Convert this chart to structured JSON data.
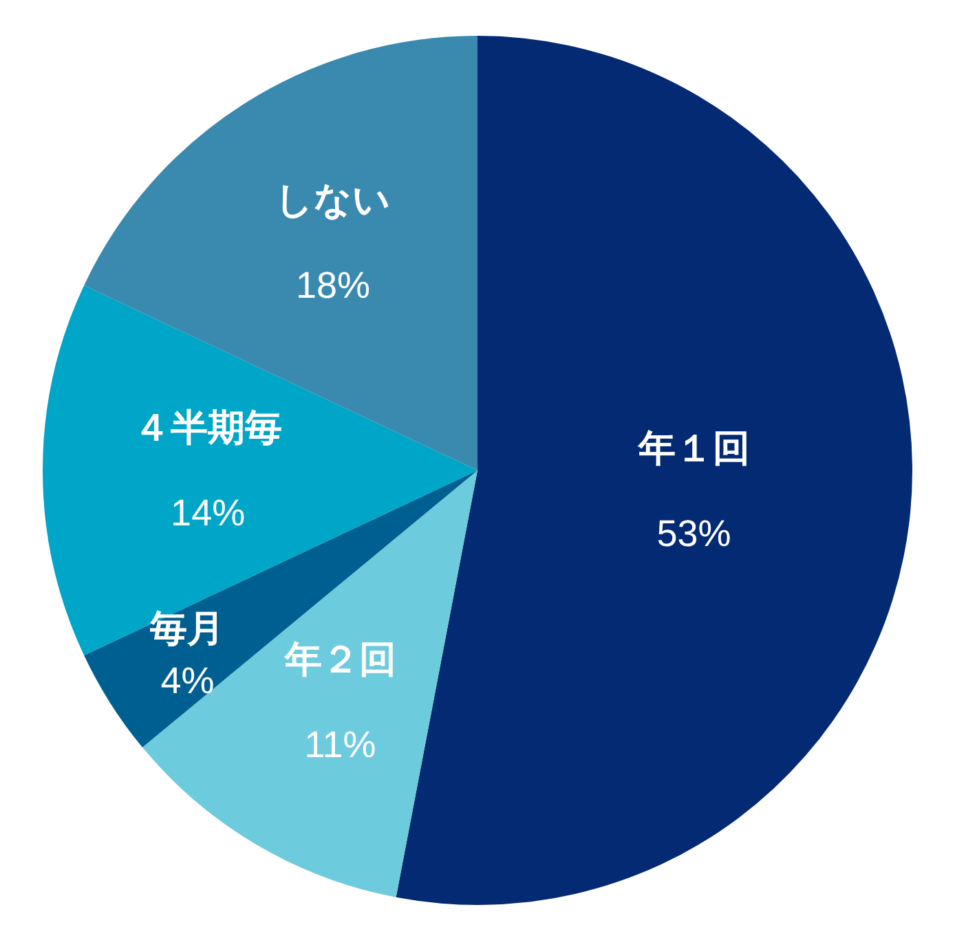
{
  "chart_data": {
    "type": "pie",
    "categories": [
      "年１回",
      "年２回",
      "毎月",
      "４半期毎",
      "しない"
    ],
    "values": [
      53,
      11,
      4,
      14,
      18
    ],
    "colors": [
      "#032a73",
      "#6ccbdc",
      "#005f91",
      "#00a6c8",
      "#3a8ab0"
    ],
    "data_labels": true,
    "value_labels": [
      "53%",
      "11%",
      "4%",
      "14%",
      "18%"
    ],
    "legend": false
  }
}
